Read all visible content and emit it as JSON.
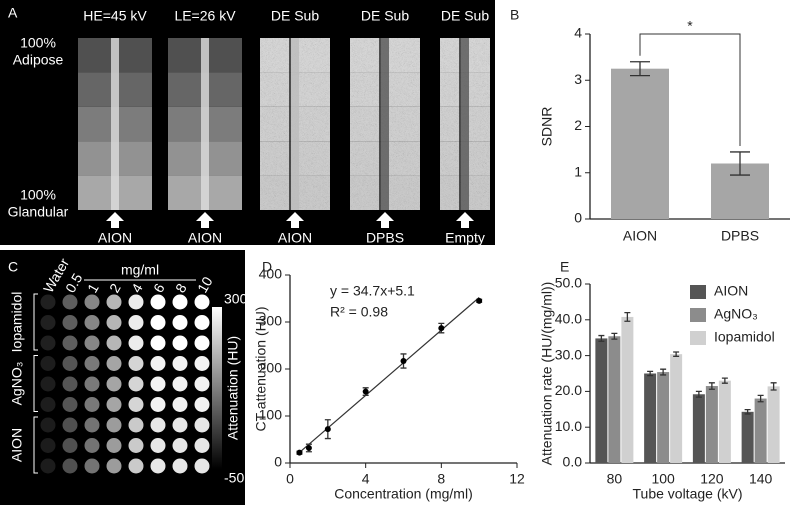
{
  "image_panels": {
    "a": {
      "panel_label": "A",
      "column_titles": [
        "HE=45 kV",
        "LE=26 kV",
        "DE Sub",
        "DE Sub",
        "DE Sub"
      ],
      "column_labels": [
        "AION",
        "AION",
        "AION",
        "DPBS",
        "Empty"
      ],
      "top_label": [
        "100%",
        "Adipose"
      ],
      "bottom_label": [
        "100%",
        "Glandular"
      ]
    },
    "c": {
      "panel_label": "C",
      "unit": "mg/ml",
      "column_labels": [
        "Water",
        "0.5",
        "1",
        "2",
        "4",
        "6",
        "8",
        "10"
      ],
      "row_labels": [
        "Iopamidol",
        "AgNO₃",
        "AION"
      ],
      "colorbar_max": "300",
      "colorbar_min": "-50",
      "colorbar_label": "Attenuation (HU)"
    }
  },
  "chart_data": [
    {
      "type": "bar",
      "panel_label": "B",
      "y_label": "SDNR",
      "categories": [
        "AION",
        "DPBS"
      ],
      "values": [
        3.25,
        1.2
      ],
      "errors": [
        0.15,
        0.25
      ],
      "color": "#a6a6a6",
      "significance": "*",
      "ylim": [
        0,
        4
      ],
      "yticks": [
        0,
        1,
        2,
        3,
        4
      ]
    },
    {
      "type": "scatter",
      "panel_label": "D",
      "x_label": "Concentration (mg/ml)",
      "y_label": "CT attenuation (HU)",
      "annotations": [
        "y = 34.7x+5.1",
        "R² = 0.98"
      ],
      "fit": {
        "slope": 34.7,
        "intercept": 5.1
      },
      "x": [
        0.5,
        1,
        2,
        4,
        6,
        8,
        10
      ],
      "values": [
        22,
        32,
        72,
        152,
        217,
        287,
        345
      ],
      "errors": [
        3,
        8,
        20,
        8,
        15,
        10,
        3
      ],
      "color": "#000000",
      "xlim": [
        0,
        12
      ],
      "xticks": [
        0,
        4,
        8,
        12
      ],
      "ylim": [
        0,
        400
      ],
      "yticks": [
        0,
        100,
        200,
        300,
        400
      ]
    },
    {
      "type": "grouped_bar",
      "panel_label": "E",
      "x_label": "Tube voltage (kV)",
      "y_label": "Attenuation rate (HU/(mg/ml))",
      "categories": [
        "80",
        "100",
        "120",
        "140"
      ],
      "series": [
        {
          "name": "AION",
          "color": "#555555",
          "values": [
            34.8,
            25,
            19.2,
            14.3
          ],
          "errors": [
            0.8,
            0.6,
            0.8,
            0.6
          ]
        },
        {
          "name": "AgNO₃",
          "color": "#8c8c8c",
          "values": [
            35.4,
            25.4,
            21.5,
            18
          ],
          "errors": [
            0.8,
            0.8,
            0.9,
            0.9
          ]
        },
        {
          "name": "Iopamidol",
          "color": "#d0d0d0",
          "values": [
            40.8,
            30.4,
            23,
            21.4
          ],
          "errors": [
            1.2,
            0.6,
            0.7,
            1
          ]
        }
      ],
      "ylim": [
        0,
        50
      ],
      "yticks": [
        {
          "value": 0,
          "label": "0.0"
        },
        {
          "value": 10,
          "label": "10.0"
        },
        {
          "value": 20,
          "label": "20.0"
        },
        {
          "value": 30,
          "label": "30.0"
        },
        {
          "value": 40,
          "label": "40.0"
        },
        {
          "value": 50,
          "label": "50.0"
        }
      ]
    }
  ]
}
